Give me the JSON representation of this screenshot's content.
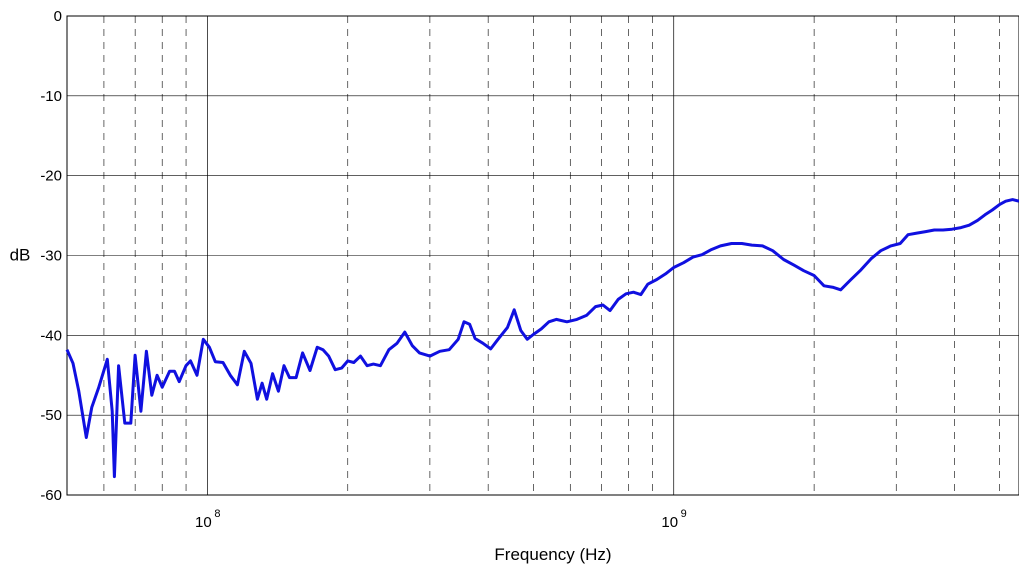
{
  "chart_data": {
    "type": "line",
    "title": "",
    "xlabel": "Frequency (Hz)",
    "ylabel": "dB",
    "xscale": "log",
    "xlim": [
      50000000,
      5500000000
    ],
    "ylim": [
      -60,
      0
    ],
    "grid": true,
    "x_tick_labels": [
      {
        "value": 100000000,
        "base": "10",
        "exp": "8"
      },
      {
        "value": 1000000000,
        "base": "10",
        "exp": "9"
      }
    ],
    "y_ticks": [
      0,
      -10,
      -20,
      -30,
      -40,
      -50,
      -60
    ],
    "y_tick_labels": [
      "0",
      "-10",
      "-20",
      "-30",
      "-40",
      "-50",
      "-60"
    ],
    "series": [
      {
        "color": "#1010e0",
        "points": [
          [
            50000000,
            -41.8
          ],
          [
            51500000,
            -43.5
          ],
          [
            53000000,
            -47.0
          ],
          [
            55000000,
            -52.8
          ],
          [
            56500000,
            -49.0
          ],
          [
            58500000,
            -46.5
          ],
          [
            61000000,
            -43.0
          ],
          [
            62500000,
            -49.5
          ],
          [
            63200000,
            -57.7
          ],
          [
            64500000,
            -43.8
          ],
          [
            66500000,
            -51.0
          ],
          [
            68500000,
            -51.0
          ],
          [
            70000000,
            -42.5
          ],
          [
            72000000,
            -49.5
          ],
          [
            74000000,
            -42.0
          ],
          [
            76000000,
            -47.5
          ],
          [
            78000000,
            -45.0
          ],
          [
            80000000,
            -46.5
          ],
          [
            83000000,
            -44.5
          ],
          [
            85000000,
            -44.5
          ],
          [
            87000000,
            -45.8
          ],
          [
            90000000,
            -43.8
          ],
          [
            92000000,
            -43.2
          ],
          [
            95000000,
            -45.0
          ],
          [
            98000000,
            -40.5
          ],
          [
            101000000,
            -41.5
          ],
          [
            104000000,
            -43.3
          ],
          [
            108000000,
            -43.4
          ],
          [
            112000000,
            -45.0
          ],
          [
            116000000,
            -46.2
          ],
          [
            120000000,
            -42.0
          ],
          [
            124000000,
            -43.5
          ],
          [
            128000000,
            -48.0
          ],
          [
            131000000,
            -46.0
          ],
          [
            134000000,
            -48.0
          ],
          [
            138000000,
            -44.8
          ],
          [
            142000000,
            -47.0
          ],
          [
            146000000,
            -43.8
          ],
          [
            150000000,
            -45.3
          ],
          [
            155000000,
            -45.3
          ],
          [
            160000000,
            -42.2
          ],
          [
            166000000,
            -44.4
          ],
          [
            172000000,
            -41.5
          ],
          [
            177000000,
            -41.8
          ],
          [
            182000000,
            -42.6
          ],
          [
            188000000,
            -44.3
          ],
          [
            194000000,
            -44.1
          ],
          [
            200000000,
            -43.2
          ],
          [
            206000000,
            -43.4
          ],
          [
            213000000,
            -42.6
          ],
          [
            220000000,
            -43.8
          ],
          [
            227000000,
            -43.6
          ],
          [
            235000000,
            -43.8
          ],
          [
            245000000,
            -41.8
          ],
          [
            255000000,
            -41.0
          ],
          [
            265000000,
            -39.6
          ],
          [
            275000000,
            -41.3
          ],
          [
            285000000,
            -42.2
          ],
          [
            300000000,
            -42.6
          ],
          [
            315000000,
            -42.0
          ],
          [
            330000000,
            -41.8
          ],
          [
            345000000,
            -40.5
          ],
          [
            355000000,
            -38.3
          ],
          [
            365000000,
            -38.6
          ],
          [
            375000000,
            -40.4
          ],
          [
            390000000,
            -41.0
          ],
          [
            405000000,
            -41.7
          ],
          [
            420000000,
            -40.5
          ],
          [
            440000000,
            -39.0
          ],
          [
            455000000,
            -36.8
          ],
          [
            470000000,
            -39.4
          ],
          [
            485000000,
            -40.5
          ],
          [
            500000000,
            -39.9
          ],
          [
            520000000,
            -39.2
          ],
          [
            540000000,
            -38.3
          ],
          [
            560000000,
            -38.0
          ],
          [
            590000000,
            -38.3
          ],
          [
            620000000,
            -38.0
          ],
          [
            650000000,
            -37.5
          ],
          [
            680000000,
            -36.4
          ],
          [
            705000000,
            -36.2
          ],
          [
            730000000,
            -36.9
          ],
          [
            760000000,
            -35.5
          ],
          [
            790000000,
            -34.8
          ],
          [
            820000000,
            -34.6
          ],
          [
            850000000,
            -34.9
          ],
          [
            880000000,
            -33.6
          ],
          [
            920000000,
            -33.0
          ],
          [
            960000000,
            -32.3
          ],
          [
            1000000000,
            -31.5
          ],
          [
            1050000000,
            -30.9
          ],
          [
            1100000000,
            -30.2
          ],
          [
            1150000000,
            -29.9
          ],
          [
            1200000000,
            -29.3
          ],
          [
            1260000000,
            -28.8
          ],
          [
            1330000000,
            -28.5
          ],
          [
            1400000000,
            -28.5
          ],
          [
            1470000000,
            -28.7
          ],
          [
            1550000000,
            -28.8
          ],
          [
            1630000000,
            -29.4
          ],
          [
            1720000000,
            -30.5
          ],
          [
            1810000000,
            -31.2
          ],
          [
            1900000000,
            -31.9
          ],
          [
            2000000000,
            -32.5
          ],
          [
            2100000000,
            -33.8
          ],
          [
            2200000000,
            -34.0
          ],
          [
            2280000000,
            -34.3
          ],
          [
            2400000000,
            -33.0
          ],
          [
            2520000000,
            -31.8
          ],
          [
            2650000000,
            -30.4
          ],
          [
            2780000000,
            -29.4
          ],
          [
            2920000000,
            -28.8
          ],
          [
            3060000000,
            -28.5
          ],
          [
            3180000000,
            -27.4
          ],
          [
            3320000000,
            -27.2
          ],
          [
            3470000000,
            -27.0
          ],
          [
            3620000000,
            -26.8
          ],
          [
            3780000000,
            -26.8
          ],
          [
            3950000000,
            -26.7
          ],
          [
            4130000000,
            -26.5
          ],
          [
            4300000000,
            -26.2
          ],
          [
            4480000000,
            -25.6
          ],
          [
            4650000000,
            -24.9
          ],
          [
            4820000000,
            -24.3
          ],
          [
            5000000000,
            -23.6
          ],
          [
            5150000000,
            -23.2
          ],
          [
            5330000000,
            -23.0
          ],
          [
            5500000000,
            -23.2
          ]
        ]
      }
    ]
  }
}
